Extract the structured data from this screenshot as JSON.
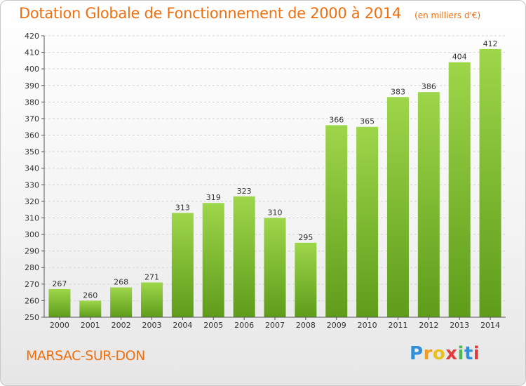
{
  "chart_data": {
    "type": "bar",
    "title": "Dotation Globale de Fonctionnement de 2000 à 2014",
    "unit": "(en milliers d'€)",
    "categories": [
      "2000",
      "2001",
      "2002",
      "2003",
      "2004",
      "2005",
      "2006",
      "2007",
      "2008",
      "2009",
      "2010",
      "2011",
      "2012",
      "2013",
      "2014"
    ],
    "values": [
      267,
      260,
      268,
      271,
      313,
      319,
      323,
      310,
      295,
      366,
      365,
      383,
      386,
      404,
      412
    ],
    "ylim": [
      250,
      420
    ],
    "yticks": [
      250,
      260,
      270,
      280,
      290,
      300,
      310,
      320,
      330,
      340,
      350,
      360,
      370,
      380,
      390,
      400,
      410,
      420
    ],
    "grid": true,
    "bar_color": "#7cbc2c"
  },
  "footer": {
    "commune": "MARSAC-SUR-DON",
    "brand_letters": [
      {
        "ch": "P",
        "color": "#2f8fd8"
      },
      {
        "ch": "r",
        "color": "#f0a020"
      },
      {
        "ch": "o",
        "color": "#e8c020"
      },
      {
        "ch": "x",
        "color": "#e03c3c"
      },
      {
        "ch": "i",
        "color": "#4fb84f"
      },
      {
        "ch": "t",
        "color": "#2f8fd8"
      },
      {
        "ch": "i",
        "color": "#e03c3c"
      }
    ]
  }
}
